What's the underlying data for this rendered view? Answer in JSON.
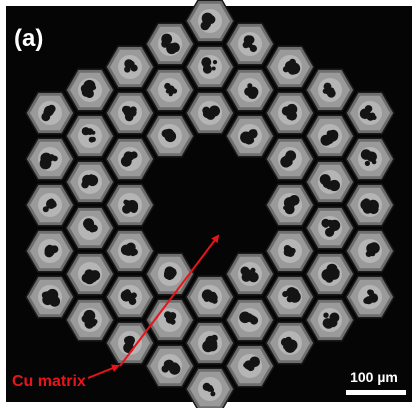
{
  "panel_label": "(a)",
  "annotation": "Cu matrix",
  "scale_bar": "100 µm"
}
